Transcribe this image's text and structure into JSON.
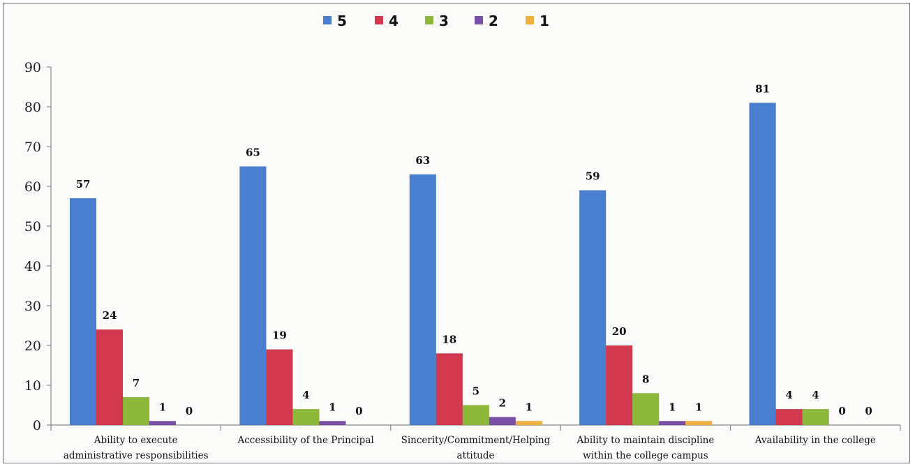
{
  "chart_data": {
    "type": "bar",
    "categories": [
      [
        "Ability to execute",
        "administrative responsibilities"
      ],
      [
        "Accessibility of the Principal"
      ],
      [
        "Sincerity/Commitment/Helping",
        "attitude"
      ],
      [
        "Ability to maintain discipline",
        "within the college campus"
      ],
      [
        "Availability in the college"
      ]
    ],
    "series": [
      {
        "name": "5",
        "color": "#4a7fd0",
        "values": [
          57,
          65,
          63,
          59,
          81
        ]
      },
      {
        "name": "4",
        "color": "#d2384e",
        "values": [
          24,
          19,
          18,
          20,
          4
        ]
      },
      {
        "name": "3",
        "color": "#8db83a",
        "values": [
          7,
          4,
          5,
          8,
          4
        ]
      },
      {
        "name": "2",
        "color": "#7a4fa6",
        "values": [
          1,
          1,
          2,
          1,
          0
        ]
      },
      {
        "name": "1",
        "color": "#f0b040",
        "values": [
          0,
          0,
          1,
          1,
          0
        ]
      }
    ],
    "ylim": [
      0,
      90
    ],
    "yticks": [
      0,
      10,
      20,
      30,
      40,
      50,
      60,
      70,
      80,
      90
    ],
    "grid": false,
    "legend": "top-center",
    "xlabel": "",
    "ylabel": ""
  }
}
